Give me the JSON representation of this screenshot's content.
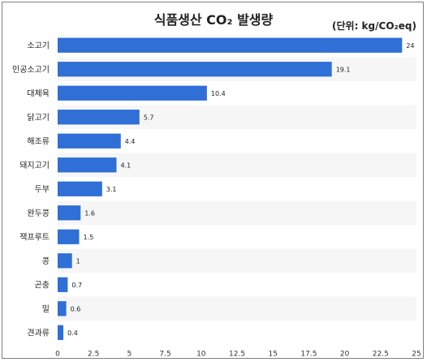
{
  "chart_data": {
    "type": "bar",
    "orientation": "horizontal",
    "title": "식품생산 CO₂ 발생량",
    "unit_label": "(단위: kg/CO₂eq)",
    "categories": [
      "소고기",
      "인공소고기",
      "대체육",
      "닭고기",
      "해조류",
      "돼지고기",
      "두부",
      "완두콩",
      "잭프루트",
      "콩",
      "곤충",
      "밀",
      "견과류"
    ],
    "values": [
      24,
      19.1,
      10.4,
      5.7,
      4.4,
      4.1,
      3.1,
      1.6,
      1.5,
      1,
      0.7,
      0.6,
      0.4
    ],
    "value_labels": [
      "24",
      "19.1",
      "10.4",
      "5.7",
      "4.4",
      "4.1",
      "3.1",
      "1.6",
      "1.5",
      "1",
      "0.7",
      "0.6",
      "0.4"
    ],
    "xlim": [
      0,
      25
    ],
    "xticks": [
      "0",
      "2.5",
      "5",
      "7.5",
      "10",
      "12.5",
      "15",
      "17.5",
      "20",
      "22.5",
      "25"
    ],
    "grid": "horizontal bands",
    "legend": "none",
    "bar_color": "#2f6fd6"
  }
}
